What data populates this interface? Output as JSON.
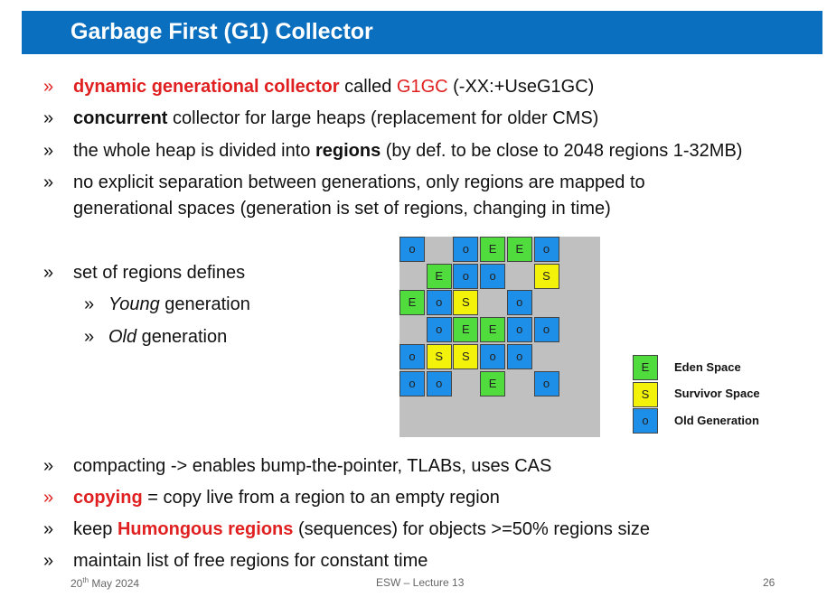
{
  "title": "Garbage First (G1) Collector",
  "marker": "»",
  "bullets": [
    {
      "parts": [
        "dynamic generational collector",
        " called ",
        "G1GC",
        " (-XX:+UseG1GC)"
      ]
    },
    {
      "parts": [
        "concurrent",
        " collector for large heaps (replacement for older CMS)"
      ]
    },
    {
      "parts": [
        "the whole heap is divided into ",
        "regions",
        " (by def. to be close to 2048 regions 1-32MB)"
      ]
    },
    {
      "line1": "no explicit separation between generations, only regions are mapped to",
      "line2": "generational spaces (generation is set of regions, changing in time)"
    },
    {
      "text": "set of regions defines"
    },
    {
      "text": "compacting -> enables bump-the-pointer, TLABs, uses CAS"
    },
    {
      "parts": [
        "copying",
        " = copy live from a region to an empty region"
      ]
    },
    {
      "parts": [
        "keep ",
        "Humongous regions",
        " (sequences) for objects >=50% regions size"
      ]
    },
    {
      "text": "maintain list of free regions for constant time"
    }
  ],
  "sub_bullets": [
    {
      "em": "Young",
      "rest": " generation"
    },
    {
      "em": "Old",
      "rest": " generation"
    }
  ],
  "grid": {
    "rows": [
      [
        "O",
        "",
        "O",
        "E",
        "E",
        "O",
        ""
      ],
      [
        "",
        "E",
        "O",
        "O",
        "",
        "S",
        ""
      ],
      [
        "E",
        "O",
        "S",
        "",
        "O",
        "",
        ""
      ],
      [
        "",
        "O",
        "E",
        "E",
        "O",
        "O",
        ""
      ],
      [
        "O",
        "S",
        "S",
        "O",
        "O",
        "",
        ""
      ],
      [
        "O",
        "O",
        "",
        "E",
        "",
        "O",
        ""
      ],
      [
        "",
        "",
        "",
        "",
        "",
        "",
        ""
      ]
    ],
    "labels": {
      "E": "E",
      "S": "S",
      "O": "o"
    }
  },
  "legend": [
    {
      "key": "E",
      "symbol": "E",
      "label": "Eden Space"
    },
    {
      "key": "S",
      "symbol": "S",
      "label": "Survivor Space"
    },
    {
      "key": "O",
      "symbol": "o",
      "label": "Old Generation"
    }
  ],
  "colors": {
    "eden": "#4fdc3c",
    "survivor": "#f2f20a",
    "old": "#1e8fe8",
    "accent_red": "#e02020",
    "title_bar": "#0b6fbf"
  },
  "footer": {
    "date_day": "20",
    "date_sup": "th",
    "date_rest": " May 2024",
    "center": "ESW – Lecture 13",
    "page": "26"
  }
}
